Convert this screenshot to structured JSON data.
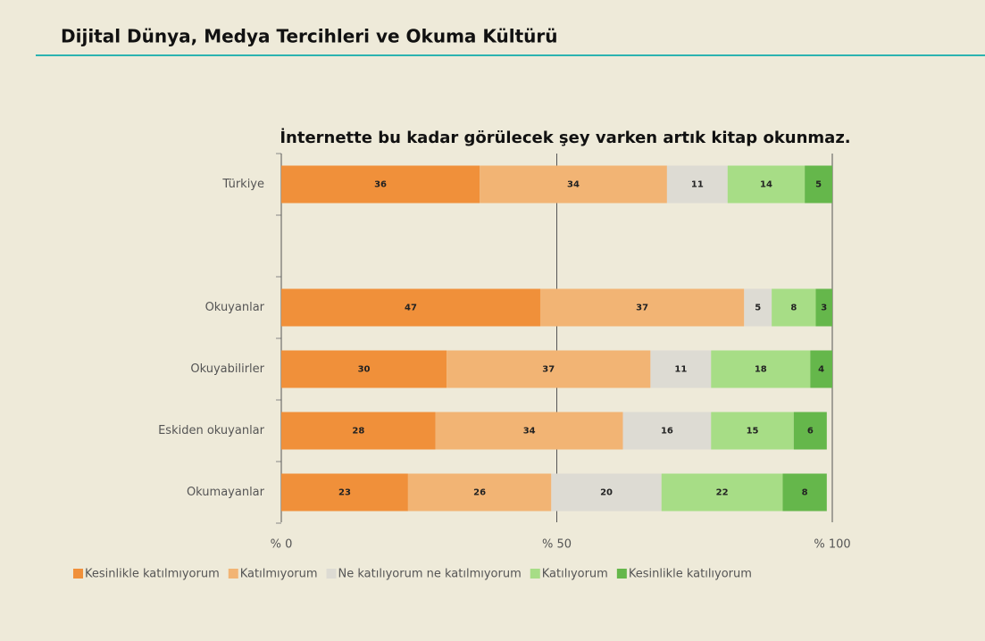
{
  "page_title": "Dijital Dünya, Medya Tercihleri ve Okuma Kültürü",
  "chart_data": {
    "type": "stacked-bar-horizontal",
    "title": "İnternette bu kadar görülecek şey varken artık kitap okunmaz.",
    "categories": [
      "Türkiye",
      null,
      "Okuyanlar",
      "Okuyabilirler",
      "Eskiden okuyanlar",
      "Okumayanlar"
    ],
    "series": [
      {
        "name": "Kesinlikle katılmıyorum",
        "color": "#f0903a",
        "values": [
          36,
          null,
          47,
          30,
          28,
          23
        ]
      },
      {
        "name": "Katılmıyorum",
        "color": "#f2b474",
        "values": [
          34,
          null,
          37,
          37,
          34,
          26
        ]
      },
      {
        "name": "Ne katılıyorum ne katılmıyorum",
        "color": "#dddbd3",
        "values": [
          11,
          null,
          5,
          11,
          16,
          20
        ]
      },
      {
        "name": "Katılıyorum",
        "color": "#a7dd86",
        "values": [
          14,
          null,
          8,
          18,
          15,
          22
        ]
      },
      {
        "name": "Kesinlikle katılıyorum",
        "color": "#65b74b",
        "values": [
          5,
          null,
          3,
          4,
          6,
          8
        ]
      }
    ],
    "xlim": [
      0,
      100
    ],
    "xticks": [
      {
        "value": 0,
        "label": "% 0"
      },
      {
        "value": 50,
        "label": "% 50"
      },
      {
        "value": 100,
        "label": "% 100"
      }
    ],
    "grid": true,
    "legend": "bottom"
  }
}
